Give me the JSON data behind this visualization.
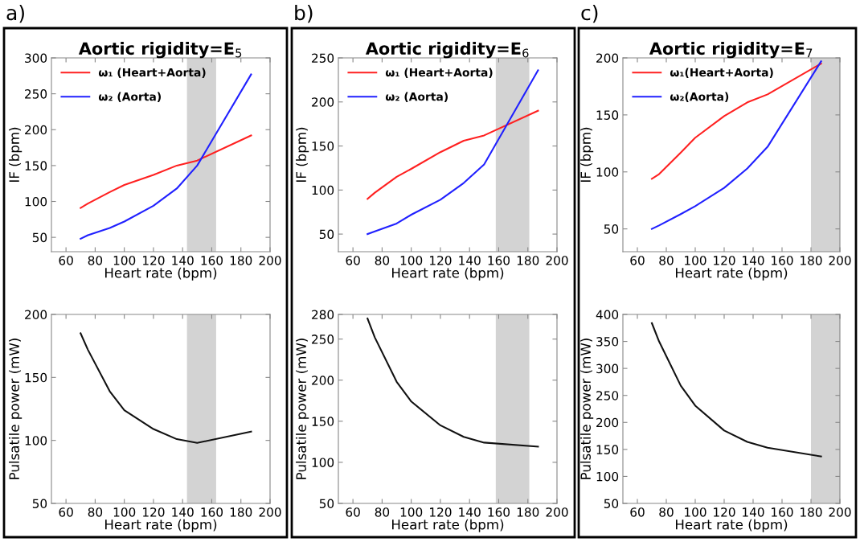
{
  "chart_data": [
    {
      "type": "line",
      "title": "Aortic rigidity=E$_{5}$",
      "annotations": [
        "a)"
      ],
      "xlabel": "Heart rate (bpm)",
      "ylabel": "IF (bpm)",
      "x": [
        70,
        75,
        90,
        100,
        120,
        136,
        150,
        187
      ],
      "xlim": [
        50,
        200
      ],
      "xticks": [
        60,
        80,
        100,
        120,
        140,
        160,
        180,
        200
      ],
      "ylim": [
        30,
        300
      ],
      "yticks": [
        50,
        100,
        150,
        200,
        250,
        300
      ],
      "legend": "top left",
      "grid": false,
      "bands": [
        {
          "axis": "x",
          "from": 143,
          "to": 163,
          "color": "#d3d3d3"
        }
      ],
      "series": [
        {
          "name": "ω₁ (Heart+Aorta)",
          "color": "#ff2020",
          "values": [
            91,
            97,
            113,
            123,
            137,
            150,
            157,
            192
          ]
        },
        {
          "name": "ω₂ (Aorta)",
          "color": "#2020ff",
          "values": [
            48,
            53,
            63,
            72,
            94,
            118,
            150,
            277
          ]
        }
      ]
    },
    {
      "type": "line",
      "title": "Aortic rigidity=E$_{6}$",
      "annotations": [
        "b)"
      ],
      "xlabel": "Heart rate (bpm)",
      "ylabel": "IF (bpm)",
      "x": [
        70,
        75,
        90,
        100,
        120,
        136,
        150,
        187
      ],
      "xlim": [
        50,
        200
      ],
      "xticks": [
        60,
        80,
        100,
        120,
        140,
        160,
        180,
        200
      ],
      "ylim": [
        30,
        250
      ],
      "yticks": [
        50,
        100,
        150,
        200,
        250
      ],
      "legend": "top left",
      "grid": false,
      "bands": [
        {
          "axis": "x",
          "from": 158,
          "to": 181,
          "color": "#d3d3d3"
        }
      ],
      "series": [
        {
          "name": "ω₁ (Heart+Aorta)",
          "color": "#ff2020",
          "values": [
            90,
            97,
            115,
            124,
            143,
            156,
            162,
            190
          ]
        },
        {
          "name": "ω₂ (Aorta)",
          "color": "#2020ff",
          "values": [
            50,
            53,
            62,
            72,
            89,
            108,
            129,
            236
          ]
        }
      ]
    },
    {
      "type": "line",
      "title": "Aortic rigidity=E$_{7}$",
      "annotations": [
        "c)"
      ],
      "xlabel": "Heart rate (bpm)",
      "ylabel": "IF (bpm)",
      "x": [
        70,
        75,
        90,
        100,
        120,
        136,
        150,
        187
      ],
      "xlim": [
        50,
        200
      ],
      "xticks": [
        60,
        80,
        100,
        120,
        140,
        160,
        180,
        200
      ],
      "ylim": [
        30,
        200
      ],
      "yticks": [
        50,
        100,
        150,
        200
      ],
      "legend": "top left",
      "grid": false,
      "bands": [
        {
          "axis": "x",
          "from": 180,
          "to": 200,
          "color": "#d3d3d3"
        }
      ],
      "series": [
        {
          "name": "ω₁(Heart+Aorta)",
          "color": "#ff2020",
          "values": [
            94,
            98,
            117,
            130,
            149,
            161,
            168,
            195
          ]
        },
        {
          "name": "ω₂(Aorta)",
          "color": "#2020ff",
          "values": [
            50,
            53,
            63,
            70,
            86,
            103,
            122,
            197
          ]
        }
      ]
    },
    {
      "type": "line",
      "xlabel": "Heart rate (bpm)",
      "ylabel": "Pulsatile power (mW)",
      "x": [
        70,
        75,
        90,
        100,
        120,
        136,
        150,
        187
      ],
      "xlim": [
        50,
        200
      ],
      "xticks": [
        60,
        80,
        100,
        120,
        140,
        160,
        180,
        200
      ],
      "ylim": [
        50,
        200
      ],
      "yticks": [
        50,
        100,
        150,
        200
      ],
      "grid": false,
      "bands": [
        {
          "axis": "x",
          "from": 143,
          "to": 163,
          "color": "#d3d3d3"
        }
      ],
      "series": [
        {
          "color": "#111111",
          "values": [
            185,
            172,
            139,
            124,
            109,
            101,
            98,
            107
          ]
        }
      ]
    },
    {
      "type": "line",
      "xlabel": "Heart rate (bpm)",
      "ylabel": "Pulsatile power (mW)",
      "x": [
        70,
        75,
        90,
        100,
        120,
        136,
        150,
        187
      ],
      "xlim": [
        50,
        200
      ],
      "xticks": [
        60,
        80,
        100,
        120,
        140,
        160,
        180,
        200
      ],
      "ylim": [
        50,
        280
      ],
      "yticks": [
        50,
        100,
        150,
        200,
        250,
        280
      ],
      "grid": false,
      "bands": [
        {
          "axis": "x",
          "from": 158,
          "to": 181,
          "color": "#d3d3d3"
        }
      ],
      "series": [
        {
          "color": "#111111",
          "values": [
            275,
            252,
            198,
            174,
            145,
            131,
            124,
            119
          ]
        }
      ]
    },
    {
      "type": "line",
      "xlabel": "Heart rate (bpm)",
      "ylabel": "Pulsatile power (mW)",
      "x": [
        70,
        75,
        90,
        100,
        120,
        136,
        150,
        187
      ],
      "xlim": [
        50,
        200
      ],
      "xticks": [
        60,
        80,
        100,
        120,
        140,
        160,
        180,
        200
      ],
      "ylim": [
        50,
        400
      ],
      "yticks": [
        50,
        100,
        150,
        200,
        250,
        300,
        350,
        400
      ],
      "grid": false,
      "bands": [
        {
          "axis": "x",
          "from": 180,
          "to": 200,
          "color": "#d3d3d3"
        }
      ],
      "series": [
        {
          "color": "#111111",
          "values": [
            384,
            350,
            268,
            231,
            185,
            164,
            153,
            137
          ]
        }
      ]
    }
  ]
}
